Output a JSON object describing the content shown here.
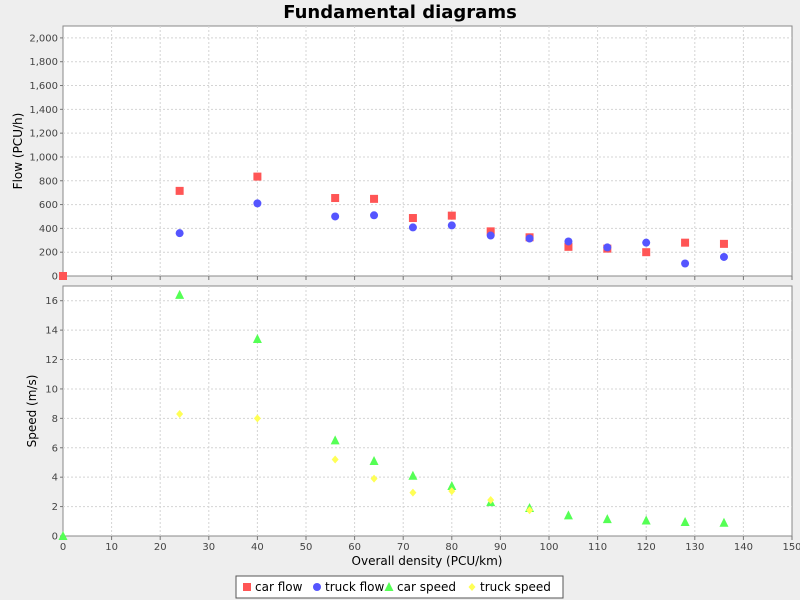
{
  "chart_data": [
    {
      "type": "scatter",
      "title": "Fundamental diagrams",
      "xlabel": "Overall density (PCU/km)",
      "ylabel": "Flow (PCU/h)",
      "xlim": [
        0,
        150
      ],
      "ylim": [
        0,
        2100
      ],
      "x_ticks": [
        "0",
        "10",
        "20",
        "30",
        "40",
        "50",
        "60",
        "70",
        "80",
        "90",
        "100",
        "110",
        "120",
        "130",
        "140",
        "150"
      ],
      "y_ticks": [
        "0",
        "200",
        "400",
        "600",
        "800",
        "1,000",
        "1,200",
        "1,400",
        "1,600",
        "1,800",
        "2,000"
      ],
      "grid": true,
      "series": [
        {
          "name": "car flow",
          "color": "#ff5555",
          "marker": "square",
          "points": [
            [
              0,
              0
            ],
            [
              24,
              715
            ],
            [
              40,
              835
            ],
            [
              56,
              655
            ],
            [
              64,
              648
            ],
            [
              72,
              487
            ],
            [
              80,
              507
            ],
            [
              88,
              375
            ],
            [
              96,
              325
            ],
            [
              104,
              245
            ],
            [
              112,
              230
            ],
            [
              120,
              200
            ],
            [
              128,
              280
            ],
            [
              136,
              270
            ]
          ]
        },
        {
          "name": "truck flow",
          "color": "#5555ff",
          "marker": "circle",
          "points": [
            [
              24,
              360
            ],
            [
              40,
              610
            ],
            [
              56,
              500
            ],
            [
              64,
              510
            ],
            [
              72,
              408
            ],
            [
              80,
              425
            ],
            [
              88,
              340
            ],
            [
              96,
              315
            ],
            [
              104,
              290
            ],
            [
              112,
              240
            ],
            [
              120,
              280
            ],
            [
              128,
              105
            ],
            [
              136,
              160
            ]
          ]
        }
      ]
    },
    {
      "type": "scatter",
      "title": "",
      "xlabel": "Overall density (PCU/km)",
      "ylabel": "Speed (m/s)",
      "xlim": [
        0,
        150
      ],
      "ylim": [
        0,
        17
      ],
      "x_ticks": [
        "0",
        "10",
        "20",
        "30",
        "40",
        "50",
        "60",
        "70",
        "80",
        "90",
        "100",
        "110",
        "120",
        "130",
        "140",
        "150"
      ],
      "y_ticks": [
        "0",
        "2",
        "4",
        "6",
        "8",
        "10",
        "12",
        "14",
        "16"
      ],
      "grid": true,
      "series": [
        {
          "name": "car speed",
          "color": "#55ff55",
          "marker": "triangle",
          "points": [
            [
              0,
              0
            ],
            [
              24,
              16.4
            ],
            [
              40,
              13.4
            ],
            [
              56,
              6.5
            ],
            [
              64,
              5.1
            ],
            [
              72,
              4.1
            ],
            [
              80,
              3.4
            ],
            [
              88,
              2.3
            ],
            [
              96,
              1.9
            ],
            [
              104,
              1.4
            ],
            [
              112,
              1.15
            ],
            [
              120,
              1.05
            ],
            [
              128,
              0.95
            ],
            [
              136,
              0.9
            ]
          ]
        },
        {
          "name": "truck speed",
          "color": "#ffff55",
          "marker": "diamond",
          "points": [
            [
              24,
              8.3
            ],
            [
              40,
              8.0
            ],
            [
              56,
              5.2
            ],
            [
              64,
              3.9
            ],
            [
              72,
              2.95
            ],
            [
              80,
              3.05
            ],
            [
              88,
              2.45
            ],
            [
              96,
              1.75
            ]
          ]
        }
      ]
    }
  ],
  "legend": [
    {
      "label": "car flow",
      "marker": "square",
      "color": "#ff5555"
    },
    {
      "label": "truck flow",
      "marker": "circle",
      "color": "#5555ff"
    },
    {
      "label": "car speed",
      "marker": "triangle",
      "color": "#55ff55"
    },
    {
      "label": "truck speed",
      "marker": "diamond",
      "color": "#ffff55"
    }
  ]
}
